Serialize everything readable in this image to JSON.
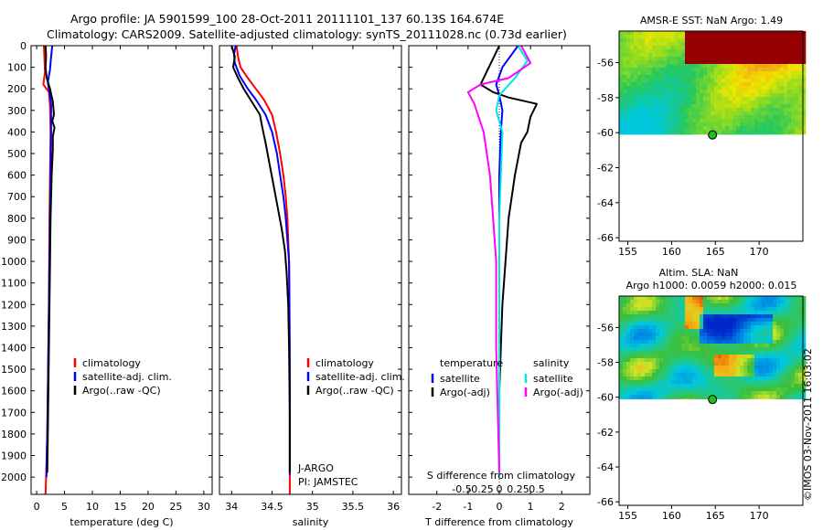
{
  "header": {
    "line1": "Argo profile: JA 5901599_100 28-Oct-2011 20111101_137 60.13S 164.674E",
    "line2": "Climatology: CARS2009. Satellite-adjusted climatology: synTS_20111028.nc (0.73d earlier)"
  },
  "credit": "©IMOS 03-Nov-2011 16:03:02",
  "colors": {
    "clim": "#ff0000",
    "sat": "#0000ff",
    "argo": "#000000",
    "sat_s": "#00e5e5",
    "argo_s": "#ff00ff"
  },
  "chart_data": [
    {
      "type": "line",
      "panel": "temperature",
      "xlabel": "temperature (deg C)",
      "ylim": [
        2080,
        0
      ],
      "xlim": [
        -1,
        31.5
      ],
      "y_ticks": [
        0,
        100,
        200,
        300,
        400,
        500,
        600,
        700,
        800,
        900,
        1000,
        1100,
        1200,
        1300,
        1400,
        1500,
        1600,
        1700,
        1800,
        1900,
        2000
      ],
      "x_ticks": [
        0,
        5,
        10,
        15,
        20,
        25,
        30
      ],
      "legend": [
        "climatology",
        "satellite-adj. clim.",
        "Argo(..raw -QC)"
      ],
      "series": [
        {
          "name": "climatology",
          "color": "clim",
          "x": [
            1.3,
            1.4,
            1.5,
            1.2,
            2.2,
            2.4,
            2.5,
            2.4,
            2.3,
            2.25,
            2.2,
            2.1,
            2.0,
            1.9,
            1.8,
            1.7,
            1.6
          ],
          "y": [
            0,
            60,
            120,
            180,
            215,
            280,
            400,
            600,
            800,
            1000,
            1200,
            1400,
            1600,
            1800,
            1900,
            2000,
            2080
          ]
        },
        {
          "name": "satellite-adj. clim.",
          "color": "sat",
          "x": [
            2.8,
            2.6,
            2.4,
            2.0,
            2.3,
            2.6,
            2.6,
            2.5,
            2.4,
            2.3,
            2.2,
            2.1,
            2.0,
            1.9,
            1.8,
            1.75
          ],
          "y": [
            0,
            50,
            110,
            170,
            220,
            270,
            400,
            600,
            800,
            1000,
            1200,
            1400,
            1600,
            1800,
            1900,
            2000
          ]
        },
        {
          "name": "Argo(..raw -QC)",
          "color": "argo",
          "x": [
            1.6,
            1.7,
            1.6,
            1.8,
            2.4,
            2.9,
            3.1,
            2.8,
            3.2,
            2.9,
            2.9,
            2.7,
            2.6,
            2.5,
            2.4,
            2.3,
            2.2,
            2.1,
            2.0,
            1.9
          ],
          "y": [
            0,
            50,
            100,
            150,
            200,
            260,
            320,
            350,
            380,
            420,
            480,
            600,
            700,
            800,
            1000,
            1200,
            1400,
            1600,
            1800,
            1980
          ]
        }
      ]
    },
    {
      "type": "line",
      "panel": "salinity",
      "xlabel": "salinity",
      "ylim": [
        2080,
        0
      ],
      "xlim": [
        33.85,
        36.1
      ],
      "x_ticks": [
        34,
        34.5,
        35,
        35.5,
        36
      ],
      "legend": [
        "climatology",
        "satellite-adj. clim.",
        "Argo(..raw -QC)"
      ],
      "annotations": [
        "J-ARGO",
        "PI: JAMSTEC"
      ],
      "series": [
        {
          "name": "climatology",
          "color": "clim",
          "x": [
            34.06,
            34.08,
            34.11,
            34.2,
            34.3,
            34.4,
            34.5,
            34.55,
            34.6,
            34.64,
            34.67,
            34.69,
            34.7,
            34.71,
            34.715,
            34.72,
            34.72,
            34.72
          ],
          "y": [
            0,
            50,
            100,
            150,
            200,
            250,
            320,
            400,
            500,
            600,
            700,
            800,
            900,
            1000,
            1200,
            1500,
            1800,
            2080
          ]
        },
        {
          "name": "satellite-adj. clim.",
          "color": "sat",
          "x": [
            34.05,
            34.03,
            34.04,
            34.1,
            34.2,
            34.3,
            34.42,
            34.5,
            34.56,
            34.6,
            34.64,
            34.67,
            34.69,
            34.71,
            34.715,
            34.72,
            34.72,
            34.72
          ],
          "y": [
            0,
            40,
            80,
            140,
            200,
            250,
            320,
            400,
            500,
            600,
            700,
            800,
            900,
            1000,
            1200,
            1500,
            1800,
            1990
          ]
        },
        {
          "name": "Argo(..raw -QC)",
          "color": "argo",
          "x": [
            34.0,
            34.04,
            34.02,
            34.08,
            34.15,
            34.25,
            34.35,
            34.38,
            34.42,
            34.47,
            34.52,
            34.57,
            34.62,
            34.66,
            34.68,
            34.7,
            34.71,
            34.72,
            34.72
          ],
          "y": [
            0,
            50,
            100,
            150,
            200,
            260,
            320,
            380,
            450,
            550,
            650,
            750,
            850,
            950,
            1050,
            1200,
            1400,
            1700,
            1980
          ]
        }
      ]
    },
    {
      "type": "line",
      "panel": "difference",
      "xlabel": "T difference from climatology",
      "xlabel_top": "S difference from climatology",
      "ylim": [
        2080,
        0
      ],
      "xlim": [
        -2.9,
        2.9
      ],
      "x_ticks": [
        -2,
        -1,
        0,
        1,
        2
      ],
      "x_ticks_s": [
        -0.5,
        -0.25,
        0,
        0.25,
        0.5
      ],
      "legend_headers": [
        "temperature",
        "salinity"
      ],
      "legend": [
        "satellite",
        "Argo(-adj)",
        "satellite",
        "Argo(-adj)"
      ],
      "series": [
        {
          "name": "temperature satellite",
          "color": "sat",
          "x": [
            0.6,
            0.4,
            0.1,
            -0.1,
            0.0,
            0.1,
            0.05,
            0.0,
            0.0,
            0.0,
            0.0
          ],
          "y": [
            0,
            40,
            100,
            180,
            230,
            300,
            400,
            600,
            1000,
            1600,
            2000
          ]
        },
        {
          "name": "temperature Argo(-adj)",
          "color": "argo",
          "x": [
            0.0,
            -0.2,
            -0.4,
            -0.6,
            -0.2,
            0.3,
            1.2,
            1.0,
            0.9,
            0.7,
            0.5,
            0.3,
            0.2,
            0.1,
            0.0,
            0.0
          ],
          "y": [
            0,
            60,
            120,
            180,
            215,
            240,
            270,
            330,
            400,
            450,
            600,
            800,
            1000,
            1200,
            1600,
            1980
          ]
        },
        {
          "name": "salinity satellite",
          "color": "sat_s",
          "x": [
            0.6,
            0.9,
            0.5,
            0.0,
            -0.1,
            0.1,
            0.05,
            0.0,
            0.0,
            0.0,
            0.0
          ],
          "y": [
            0,
            70,
            150,
            230,
            300,
            400,
            600,
            800,
            1000,
            1600,
            2000
          ]
        },
        {
          "name": "salinity Argo(-adj)",
          "color": "argo_s",
          "x": [
            0.7,
            1.0,
            0.3,
            -0.6,
            -1.0,
            -0.8,
            -0.5,
            -0.3,
            -0.2,
            -0.1,
            -0.1,
            0.0
          ],
          "y": [
            0,
            80,
            150,
            180,
            215,
            270,
            400,
            600,
            800,
            1000,
            1400,
            1980
          ]
        }
      ]
    },
    {
      "type": "heatmap",
      "panel": "sst_map",
      "title": "AMSR-E SST: NaN Argo: 1.49",
      "x_ticks": [
        155,
        160,
        165,
        170
      ],
      "y_ticks": [
        -56,
        -58,
        -60,
        -62,
        -64,
        -66
      ],
      "xlim": [
        154,
        175
      ],
      "ylim": [
        -66.2,
        -54.2
      ],
      "data_lat_min": -60.1,
      "marker": {
        "lon": 164.674,
        "lat": -60.13
      }
    },
    {
      "type": "heatmap",
      "panel": "sla_map",
      "title": "Altim. SLA: NaN",
      "title2": "Argo h1000: 0.0059 h2000: 0.015",
      "x_ticks": [
        155,
        160,
        165,
        170
      ],
      "y_ticks": [
        -56,
        -58,
        -60,
        -62,
        -64,
        -66
      ],
      "xlim": [
        154,
        175
      ],
      "ylim": [
        -66.2,
        -54.2
      ],
      "data_lat_min": -60.1,
      "marker": {
        "lon": 164.674,
        "lat": -60.13
      }
    }
  ]
}
